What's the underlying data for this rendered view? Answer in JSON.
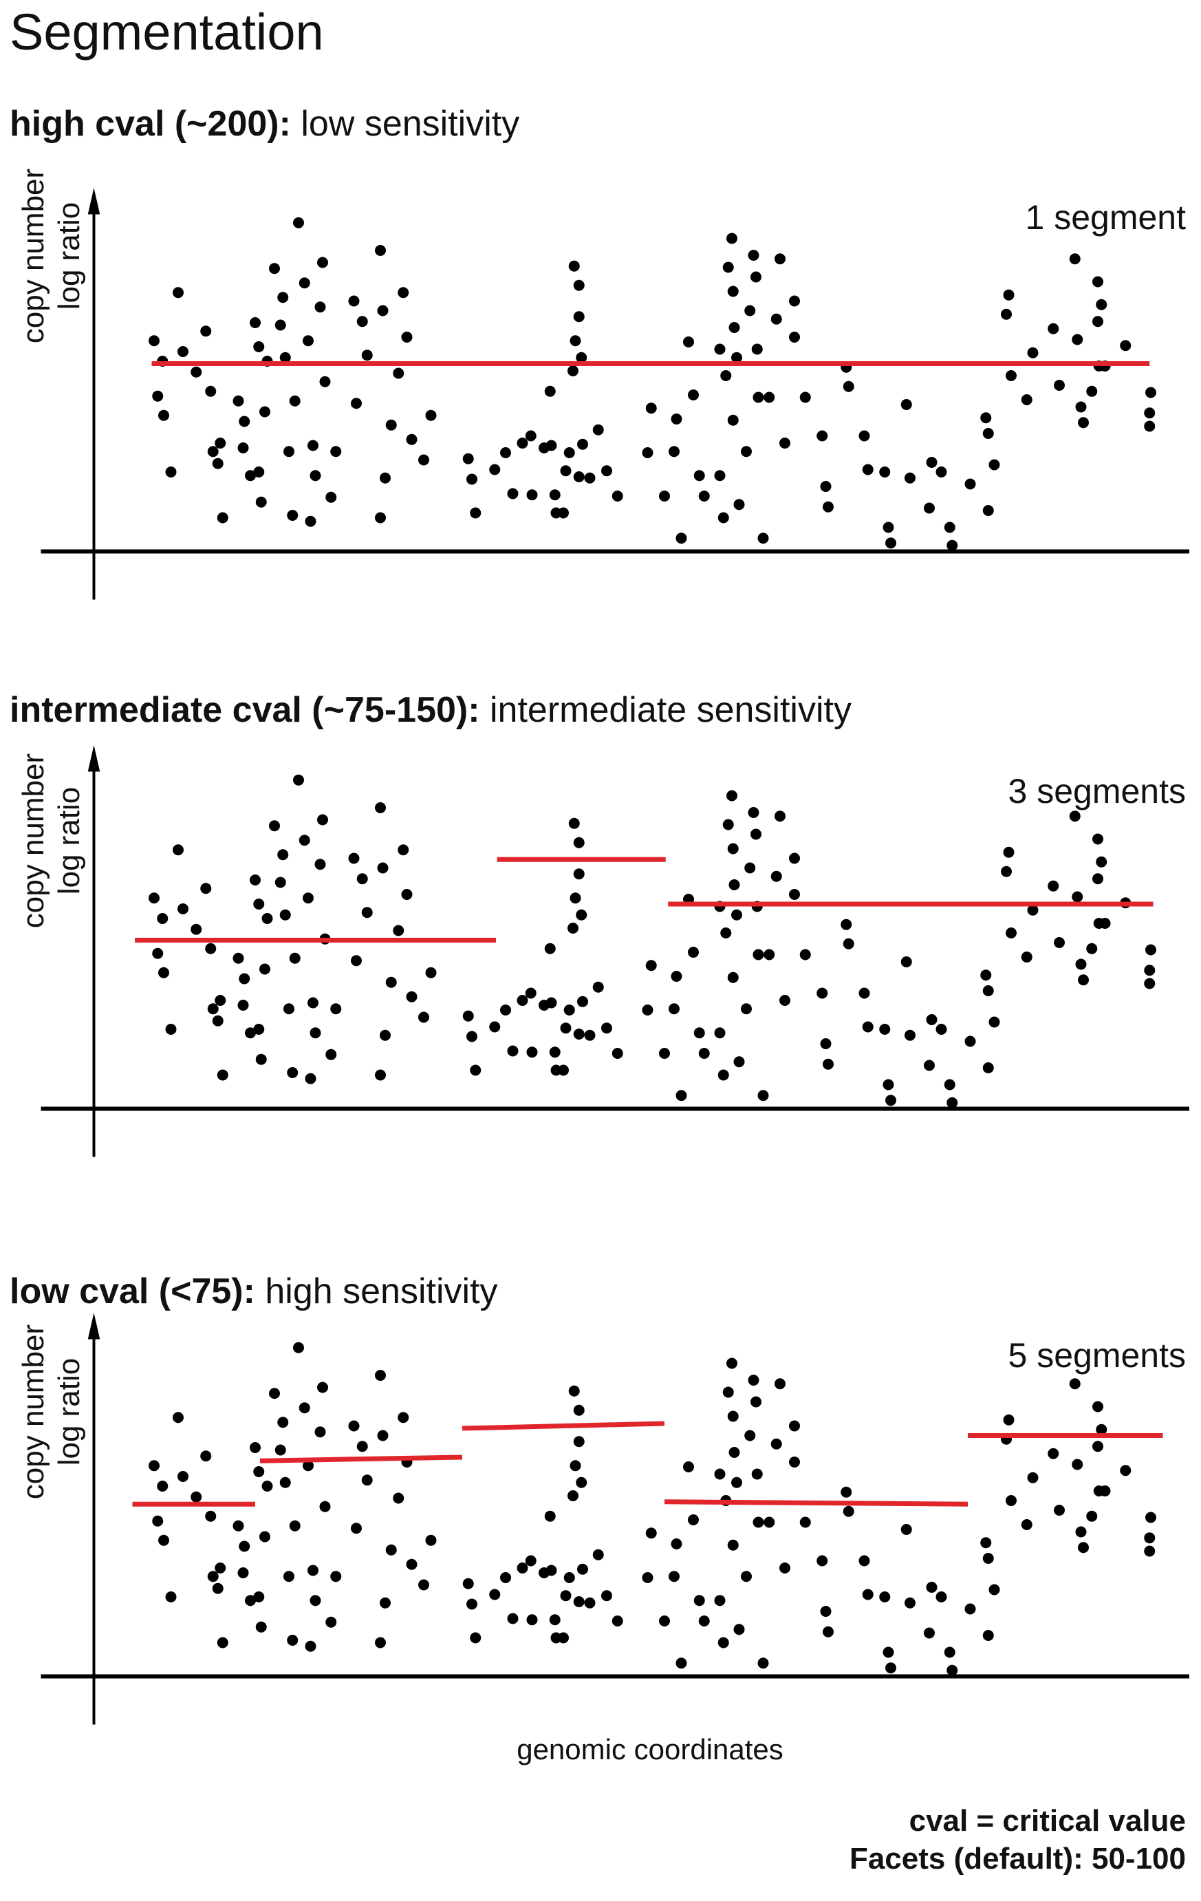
{
  "title": "Segmentation",
  "panels": [
    {
      "head_bold": "high cval (~200):",
      "head_rest": " low sensitivity",
      "segments_label": "1 segment",
      "ylabel_line1": "copy number",
      "ylabel_line2": "log ratio"
    },
    {
      "head_bold": "intermediate cval (~75-150):",
      "head_rest": " intermediate sensitivity",
      "segments_label": "3 segments",
      "ylabel_line1": "copy number",
      "ylabel_line2": "log ratio"
    },
    {
      "head_bold": "low cval (<75):",
      "head_rest": " high sensitivity",
      "segments_label": "5 segments",
      "ylabel_line1": "copy number",
      "ylabel_line2": "log ratio"
    }
  ],
  "xlabel": "genomic coordinates",
  "notes": {
    "line1": "cval = critical value",
    "line2": "Facets (default): 50-100"
  },
  "colors": {
    "segment": "#e0262b",
    "points": "#000000",
    "axes": "#000000"
  },
  "chart_data": {
    "type": "scatter",
    "points": [
      [
        128,
        293
      ],
      [
        131,
        339
      ],
      [
        135,
        310
      ],
      [
        136,
        355
      ],
      [
        142,
        402
      ],
      [
        148,
        253
      ],
      [
        152,
        302
      ],
      [
        163,
        319
      ],
      [
        171,
        285
      ],
      [
        175,
        335
      ],
      [
        177,
        385
      ],
      [
        181,
        395
      ],
      [
        185,
        440
      ],
      [
        183,
        378
      ],
      [
        198,
        343
      ],
      [
        202,
        382
      ],
      [
        203,
        360
      ],
      [
        208,
        405
      ],
      [
        212,
        278
      ],
      [
        215,
        298
      ],
      [
        217,
        427
      ],
      [
        215,
        402
      ],
      [
        220,
        352
      ],
      [
        222,
        310
      ],
      [
        228,
        233
      ],
      [
        233,
        280
      ],
      [
        235,
        257
      ],
      [
        237,
        307
      ],
      [
        240,
        385
      ],
      [
        243,
        438
      ],
      [
        245,
        343
      ],
      [
        248,
        195
      ],
      [
        253,
        245
      ],
      [
        256,
        293
      ],
      [
        258,
        443
      ],
      [
        260,
        380
      ],
      [
        262,
        405
      ],
      [
        268,
        228
      ],
      [
        266,
        265
      ],
      [
        270,
        327
      ],
      [
        275,
        423
      ],
      [
        279,
        385
      ],
      [
        294,
        260
      ],
      [
        296,
        345
      ],
      [
        301,
        277
      ],
      [
        305,
        305
      ],
      [
        316,
        218
      ],
      [
        318,
        268
      ],
      [
        316,
        440
      ],
      [
        320,
        407
      ],
      [
        325,
        363
      ],
      [
        331,
        320
      ],
      [
        335,
        253
      ],
      [
        338,
        290
      ],
      [
        342,
        375
      ],
      [
        352,
        392
      ],
      [
        358,
        355
      ],
      [
        389,
        391
      ],
      [
        392,
        408
      ],
      [
        395,
        436
      ],
      [
        411,
        400
      ],
      [
        420,
        386
      ],
      [
        426,
        420
      ],
      [
        434,
        378
      ],
      [
        441,
        372
      ],
      [
        442,
        421
      ],
      [
        452,
        382
      ],
      [
        457,
        335
      ],
      [
        461,
        421
      ],
      [
        458,
        380
      ],
      [
        462,
        436
      ],
      [
        468,
        436
      ],
      [
        470,
        401
      ],
      [
        473,
        386
      ],
      [
        476,
        318
      ],
      [
        477,
        231
      ],
      [
        478,
        293
      ],
      [
        481,
        247
      ],
      [
        483,
        307
      ],
      [
        481,
        273
      ],
      [
        481,
        406
      ],
      [
        484,
        379
      ],
      [
        490,
        407
      ],
      [
        497,
        367
      ],
      [
        504,
        401
      ],
      [
        513,
        422
      ],
      [
        538,
        386
      ],
      [
        541,
        349
      ],
      [
        552,
        422
      ],
      [
        560,
        385
      ],
      [
        566,
        457
      ],
      [
        562,
        358
      ],
      [
        572,
        294
      ],
      [
        576,
        338
      ],
      [
        581,
        405
      ],
      [
        585,
        422
      ],
      [
        598,
        405
      ],
      [
        601,
        440
      ],
      [
        598,
        300
      ],
      [
        603,
        322
      ],
      [
        605,
        232
      ],
      [
        608,
        208
      ],
      [
        610,
        282
      ],
      [
        609,
        252
      ],
      [
        609,
        359
      ],
      [
        612,
        307
      ],
      [
        614,
        429
      ],
      [
        620,
        385
      ],
      [
        623,
        268
      ],
      [
        626,
        222
      ],
      [
        628,
        240
      ],
      [
        629,
        300
      ],
      [
        630,
        340
      ],
      [
        634,
        457
      ],
      [
        639,
        340
      ],
      [
        645,
        275
      ],
      [
        648,
        225
      ],
      [
        652,
        378
      ],
      [
        660,
        290
      ],
      [
        660,
        260
      ],
      [
        669,
        340
      ],
      [
        683,
        372
      ],
      [
        686,
        414
      ],
      [
        688,
        431
      ],
      [
        703,
        315
      ],
      [
        705,
        331
      ],
      [
        718,
        372
      ],
      [
        721,
        400
      ],
      [
        735,
        402
      ],
      [
        738,
        448
      ],
      [
        740,
        461
      ],
      [
        753,
        346
      ],
      [
        756,
        407
      ],
      [
        774,
        394
      ],
      [
        772,
        432
      ],
      [
        789,
        448
      ],
      [
        791,
        463
      ],
      [
        782,
        402
      ],
      [
        806,
        412
      ],
      [
        819,
        357
      ],
      [
        821,
        434
      ],
      [
        821,
        370
      ],
      [
        826,
        396
      ],
      [
        838,
        255
      ],
      [
        836,
        271
      ],
      [
        840,
        322
      ],
      [
        853,
        342
      ],
      [
        858,
        303
      ],
      [
        875,
        283
      ],
      [
        880,
        330
      ],
      [
        893,
        225
      ],
      [
        895,
        292
      ],
      [
        898,
        348
      ],
      [
        900,
        361
      ],
      [
        907,
        335
      ],
      [
        912,
        277
      ],
      [
        912,
        244
      ],
      [
        915,
        263
      ],
      [
        913,
        314
      ],
      [
        918,
        314
      ],
      [
        935,
        297
      ],
      [
        955,
        353
      ],
      [
        955,
        364
      ],
      [
        956,
        336
      ]
    ],
    "panels": [
      {
        "segments_label": "1 segment",
        "segments": [
          {
            "x": [
              126,
              955
            ],
            "y": [
              312,
              312
            ]
          }
        ]
      },
      {
        "segments_label": "3 segments",
        "segments": [
          {
            "x": [
              112,
              412
            ],
            "y": [
              328,
              328
            ]
          },
          {
            "x": [
              413,
              553
            ],
            "y": [
              261,
              261
            ]
          },
          {
            "x": [
              555,
              958
            ],
            "y": [
              298,
              298
            ]
          }
        ]
      },
      {
        "segments_label": "5 segments",
        "segments": [
          {
            "x": [
              110,
              212
            ],
            "y": [
              325,
              325
            ]
          },
          {
            "x": [
              216,
              384
            ],
            "y": [
              289,
              286
            ]
          },
          {
            "x": [
              384,
              552
            ],
            "y": [
              262,
              258
            ]
          },
          {
            "x": [
              552,
              804
            ],
            "y": [
              323,
              325
            ]
          },
          {
            "x": [
              804,
              966
            ],
            "y": [
              268,
              268
            ]
          }
        ]
      }
    ]
  }
}
